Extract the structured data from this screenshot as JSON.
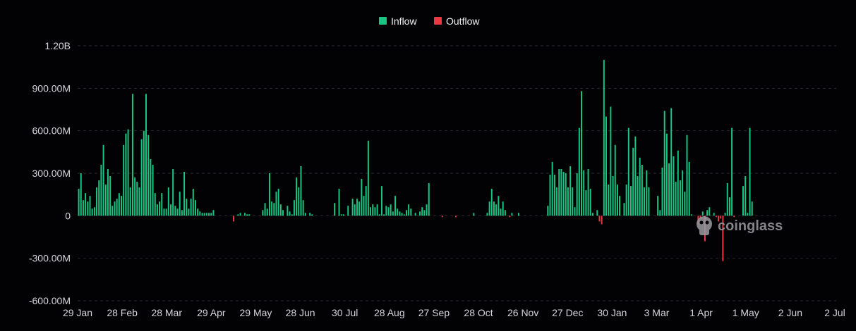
{
  "chart_data": {
    "type": "bar",
    "title": "",
    "xlabel": "",
    "ylabel": "",
    "ylim": [
      -600000000,
      1200000000
    ],
    "yticks": [
      {
        "value": 1200000000,
        "label": "1.20B"
      },
      {
        "value": 900000000,
        "label": "900.00M"
      },
      {
        "value": 600000000,
        "label": "600.00M"
      },
      {
        "value": 300000000,
        "label": "300.00M"
      },
      {
        "value": 0,
        "label": "0"
      },
      {
        "value": -300000000,
        "label": "-300.00M"
      },
      {
        "value": -600000000,
        "label": "-600.00M"
      }
    ],
    "xticks": [
      "29 Jan",
      "28 Feb",
      "28 Mar",
      "29 Apr",
      "29 May",
      "28 Jun",
      "30 Jul",
      "28 Aug",
      "27 Sep",
      "28 Oct",
      "26 Nov",
      "27 Dec",
      "30 Jan",
      "3 Mar",
      "1 Apr",
      "1 May",
      "2 Jun",
      "2 Jul"
    ],
    "grid": true,
    "legend_position": "top-center",
    "series": [
      {
        "name": "Inflow",
        "color": "#16c784"
      },
      {
        "name": "Outflow",
        "color": "#ea3943"
      }
    ],
    "values_millions": [
      190,
      300,
      110,
      160,
      100,
      140,
      50,
      60,
      200,
      250,
      360,
      500,
      220,
      330,
      280,
      70,
      100,
      120,
      160,
      140,
      500,
      580,
      610,
      200,
      860,
      270,
      240,
      200,
      540,
      600,
      860,
      570,
      400,
      360,
      160,
      80,
      100,
      160,
      50,
      50,
      200,
      80,
      330,
      70,
      50,
      170,
      40,
      310,
      120,
      50,
      120,
      190,
      110,
      50,
      30,
      20,
      20,
      20,
      20,
      20,
      40,
      0,
      0,
      0,
      0,
      0,
      0,
      0,
      0,
      -40,
      0,
      10,
      20,
      0,
      20,
      10,
      10,
      0,
      0,
      0,
      0,
      0,
      40,
      90,
      50,
      300,
      100,
      90,
      170,
      190,
      80,
      40,
      0,
      70,
      30,
      10,
      110,
      270,
      200,
      350,
      110,
      20,
      0,
      20,
      10,
      0,
      0,
      0,
      0,
      0,
      0,
      0,
      0,
      0,
      90,
      0,
      190,
      10,
      10,
      0,
      70,
      0,
      120,
      80,
      120,
      100,
      260,
      140,
      210,
      530,
      60,
      80,
      60,
      80,
      10,
      210,
      10,
      70,
      60,
      80,
      30,
      140,
      50,
      30,
      20,
      10,
      40,
      80,
      50,
      0,
      20,
      0,
      30,
      60,
      40,
      80,
      230,
      0,
      0,
      0,
      0,
      0,
      -10,
      0,
      0,
      0,
      0,
      0,
      -10,
      0,
      0,
      0,
      0,
      0,
      0,
      0,
      20,
      0,
      0,
      0,
      0,
      0,
      20,
      100,
      190,
      100,
      80,
      140,
      50,
      100,
      40,
      0,
      -10,
      20,
      0,
      0,
      20,
      0,
      0,
      0,
      0,
      0,
      0,
      0,
      0,
      0,
      0,
      0,
      0,
      70,
      290,
      380,
      290,
      200,
      330,
      330,
      310,
      300,
      200,
      350,
      200,
      60,
      300,
      620,
      880,
      320,
      180,
      330,
      190,
      20,
      0,
      40,
      -40,
      -60,
      1100,
      700,
      220,
      770,
      280,
      500,
      220,
      140,
      0,
      90,
      220,
      620,
      210,
      480,
      560,
      280,
      410,
      360,
      200,
      320,
      200,
      0,
      0,
      0
    ],
    "note_values": "daily net flow in millions, read from bars; sampled continuation follows",
    "values_millions_b": [
      140,
      40,
      340,
      740,
      580,
      370,
      760,
      420,
      240,
      460,
      250,
      320,
      170,
      570,
      380,
      10,
      0,
      0,
      -60,
      -20,
      30,
      -180,
      40,
      60,
      0,
      20,
      -10,
      -40,
      -20,
      -320,
      20,
      230,
      130,
      620,
      -10,
      0,
      0,
      0,
      210,
      280,
      20,
      620,
      100,
      0,
      0,
      0,
      0,
      0,
      0,
      0,
      0,
      0,
      0,
      0,
      0,
      0,
      0,
      0,
      0,
      0,
      0,
      0,
      0,
      0,
      0,
      0,
      0,
      0,
      0,
      0,
      0,
      0,
      0,
      0,
      0,
      0,
      0,
      0,
      0,
      0
    ]
  },
  "legend": {
    "inflow_label": "Inflow",
    "outflow_label": "Outflow"
  },
  "watermark": {
    "text": "coinglass"
  },
  "colors": {
    "background": "#020205",
    "inflow": "#16c784",
    "outflow": "#ea3943",
    "grid": "#2a2a31",
    "text": "#d6d6da"
  }
}
